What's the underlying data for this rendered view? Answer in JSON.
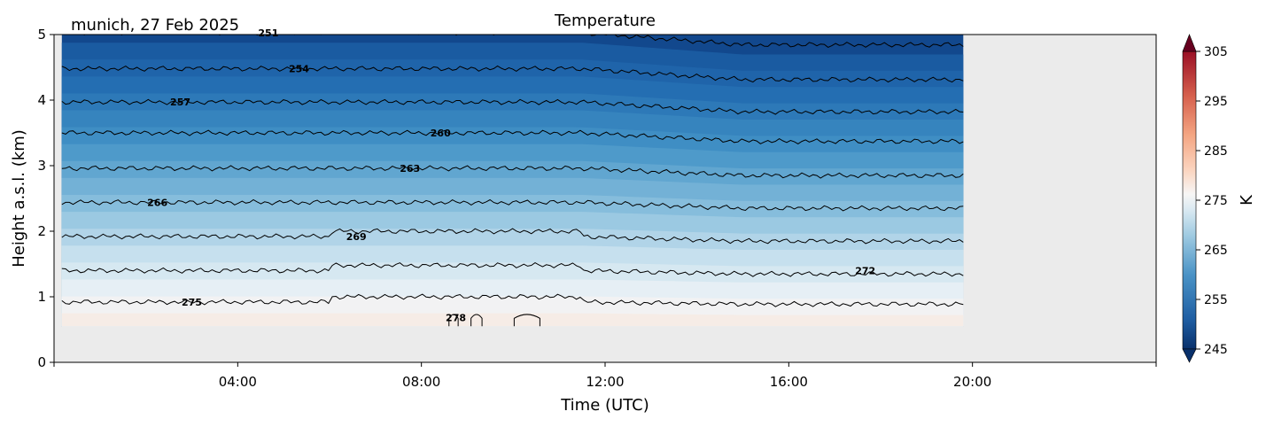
{
  "chart_data": {
    "type": "heatmap",
    "title": "Temperature",
    "subtitle": "munich, 27 Feb 2025",
    "xlabel": "Time (UTC)",
    "ylabel": "Height a.s.l. (km)",
    "xlim_hours": [
      0,
      24
    ],
    "ylim": [
      0,
      5
    ],
    "x_ticks": [
      "04:00",
      "08:00",
      "12:00",
      "16:00",
      "20:00"
    ],
    "y_ticks": [
      "0",
      "1",
      "2",
      "3",
      "4",
      "5"
    ],
    "data_extent": {
      "time_hours": [
        0.17,
        19.8
      ],
      "height_km": [
        0.55,
        5.0
      ]
    },
    "colorbar": {
      "label": "K",
      "colormap": "RdBu_r",
      "range": [
        245,
        305
      ],
      "ticks": [
        "245",
        "255",
        "265",
        "275",
        "285",
        "295",
        "305"
      ],
      "extend": "both"
    },
    "contours": [
      {
        "level": 251,
        "label": "251",
        "height_km": 5.03,
        "label_time": "04:40"
      },
      {
        "level": 254,
        "label": "254",
        "height_km": 4.48,
        "label_time": "05:20"
      },
      {
        "level": 257,
        "label": "257",
        "height_km": 3.97,
        "label_time": "02:45"
      },
      {
        "level": 260,
        "label": "260",
        "height_km": 3.5,
        "label_time": "08:25"
      },
      {
        "level": 263,
        "label": "263",
        "height_km": 2.96,
        "label_time": "07:45"
      },
      {
        "level": 266,
        "label": "266",
        "height_km": 2.44,
        "label_time": "02:15"
      },
      {
        "level": 269,
        "label": "269",
        "height_km": 1.92,
        "label_time": "06:35"
      },
      {
        "level": 272,
        "label": "272",
        "height_km": 1.4,
        "label_time": "17:40"
      },
      {
        "level": 275,
        "label": "275",
        "height_km": 0.92,
        "label_time": "03:00"
      },
      {
        "level": 278,
        "label": "278",
        "height_km": 0.68,
        "label_time": "08:45"
      }
    ],
    "colors": {
      "background": "#ebebeb",
      "contour_line": "#000000"
    }
  }
}
